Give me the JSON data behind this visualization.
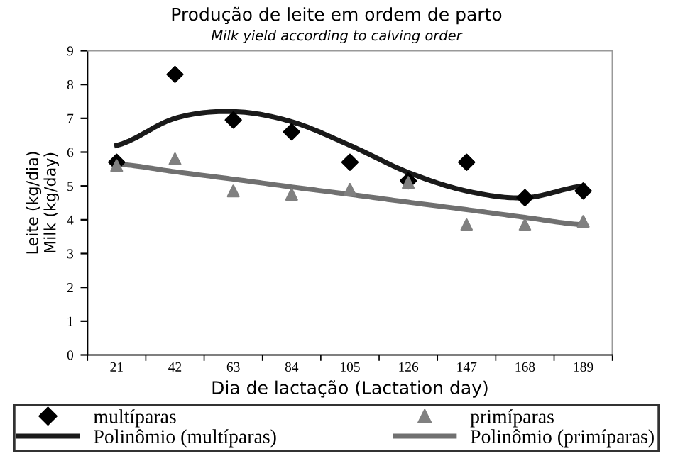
{
  "chart_data": {
    "type": "scatter",
    "title": "Produção de leite em ordem de parto",
    "subtitle": "Milk yield according to calving order",
    "xlabel": "Dia de lactação (Lactation day)",
    "ylabel": "Leite (kg/dia)\nMilk (kg/day)",
    "categories": [
      "21",
      "42",
      "63",
      "84",
      "105",
      "126",
      "147",
      "168",
      "189"
    ],
    "series": [
      {
        "name": "multíparas",
        "marker": "diamond",
        "color": "#000000",
        "values": [
          5.7,
          8.3,
          6.95,
          6.6,
          5.7,
          5.15,
          5.7,
          4.65,
          4.85
        ]
      },
      {
        "name": "primíparas",
        "marker": "triangle",
        "color": "#808080",
        "values": [
          5.6,
          5.8,
          4.85,
          4.75,
          4.9,
          5.1,
          3.85,
          3.85,
          3.95
        ]
      },
      {
        "name": "Polinômio (multíparas)",
        "type": "line",
        "color": "#1a1a1a",
        "values": [
          6.2,
          7.0,
          7.2,
          6.9,
          6.2,
          5.4,
          4.85,
          4.65,
          5.0
        ]
      },
      {
        "name": "Polinômio (primíparas)",
        "type": "line",
        "color": "#707070",
        "values": [
          5.65,
          5.42,
          5.2,
          4.97,
          4.75,
          4.52,
          4.3,
          4.07,
          3.85
        ]
      }
    ],
    "ylim": [
      0,
      9
    ],
    "yticks": [
      0,
      1,
      2,
      3,
      4,
      5,
      6,
      7,
      8,
      9
    ],
    "grid": false,
    "legend": "bottom"
  }
}
